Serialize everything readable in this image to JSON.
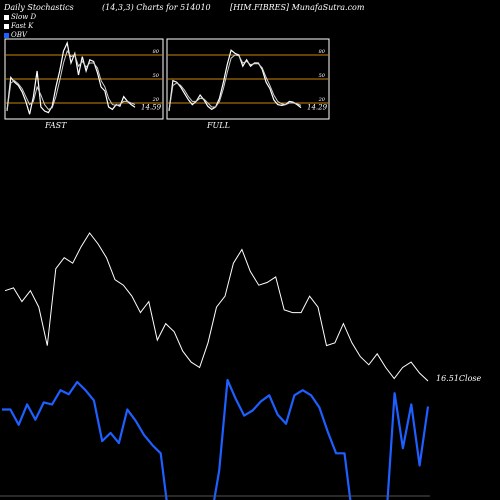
{
  "header": {
    "left": "Daily Stochastics",
    "middle": "(14,3,3) Charts for 514010",
    "right": "[HIM.FIBRES] MunafaSutra.com"
  },
  "legend": [
    {
      "label": "Slow  D",
      "color": "#ffffff"
    },
    {
      "label": "Fast K",
      "color": "#ffffff"
    },
    {
      "label": "OBV",
      "color": "#1e5fff"
    }
  ],
  "colors": {
    "background": "#000000",
    "price": "#ffffff",
    "obv": "#1e5fff",
    "level": "#c8860a"
  },
  "chart_data": [
    {
      "type": "line",
      "panel": "FAST",
      "title": "FAST",
      "ylim": [
        0,
        100
      ],
      "levels": [
        20,
        50,
        80
      ],
      "level_labels": [
        "80",
        "50",
        "20"
      ],
      "last_value_label": "14.59",
      "series": [
        {
          "name": "Fast K",
          "values": [
            10,
            52,
            46,
            42,
            34,
            22,
            6,
            28,
            60,
            15,
            10,
            8,
            16,
            40,
            60,
            85,
            95,
            70,
            82,
            55,
            78,
            60,
            74,
            72,
            58,
            40,
            35,
            15,
            12,
            18,
            16,
            28,
            22,
            18,
            14.59
          ]
        },
        {
          "name": "Slow  D",
          "values": [
            10,
            45,
            48,
            44,
            38,
            28,
            18,
            22,
            40,
            30,
            18,
            12,
            14,
            28,
            48,
            70,
            85,
            78,
            80,
            66,
            72,
            65,
            70,
            70,
            64,
            48,
            40,
            26,
            18,
            17,
            18,
            22,
            22,
            20,
            18
          ]
        }
      ]
    },
    {
      "type": "line",
      "panel": "FULL",
      "title": "FULL",
      "ylim": [
        0,
        100
      ],
      "levels": [
        20,
        50,
        80
      ],
      "level_labels": [
        "80",
        "50",
        "20"
      ],
      "last_value_label": "14.29",
      "series": [
        {
          "name": "Full K",
          "values": [
            10,
            48,
            46,
            40,
            32,
            24,
            18,
            22,
            30,
            24,
            16,
            12,
            15,
            26,
            46,
            68,
            86,
            82,
            80,
            66,
            74,
            66,
            70,
            70,
            62,
            46,
            38,
            24,
            18,
            17,
            18,
            22,
            21,
            18,
            14.29
          ]
        },
        {
          "name": "Full D",
          "values": [
            10,
            42,
            45,
            42,
            36,
            28,
            22,
            22,
            26,
            25,
            20,
            15,
            15,
            22,
            38,
            58,
            76,
            80,
            79,
            70,
            72,
            68,
            69,
            69,
            64,
            52,
            42,
            30,
            22,
            19,
            18,
            20,
            20,
            19,
            17
          ]
        }
      ]
    },
    {
      "type": "line",
      "panel": "price",
      "title": "",
      "last_value_label": "16.51",
      "close_label": "Close",
      "series": [
        {
          "name": "Close",
          "values": [
            19.8,
            19.9,
            19.4,
            19.8,
            19.2,
            17.8,
            20.6,
            21.0,
            20.8,
            21.4,
            21.9,
            21.5,
            21.0,
            20.2,
            20.0,
            19.6,
            19.0,
            19.4,
            18.0,
            18.6,
            18.3,
            17.6,
            17.2,
            17.0,
            17.9,
            19.2,
            19.6,
            20.8,
            21.3,
            20.5,
            20.0,
            20.1,
            20.3,
            19.1,
            19.0,
            19.0,
            19.6,
            19.2,
            17.8,
            17.9,
            18.6,
            17.9,
            17.4,
            17.1,
            17.5,
            17.0,
            16.6,
            17.0,
            17.2,
            16.8,
            16.51
          ]
        }
      ]
    },
    {
      "type": "line",
      "panel": "obv",
      "title": "",
      "series": [
        {
          "name": "OBV",
          "values": [
            85,
            85,
            70,
            90,
            75,
            92,
            90,
            104,
            100,
            112,
            104,
            94,
            54,
            62,
            52,
            85,
            74,
            60,
            50,
            42,
            -30,
            -30,
            -30,
            -40,
            -30,
            -40,
            25,
            114,
            95,
            79,
            84,
            93,
            99,
            80,
            71,
            99,
            104,
            99,
            87,
            63,
            42,
            42,
            -30,
            -30,
            -40,
            -45,
            -30,
            101,
            47,
            90,
            30,
            88
          ]
        }
      ]
    }
  ]
}
